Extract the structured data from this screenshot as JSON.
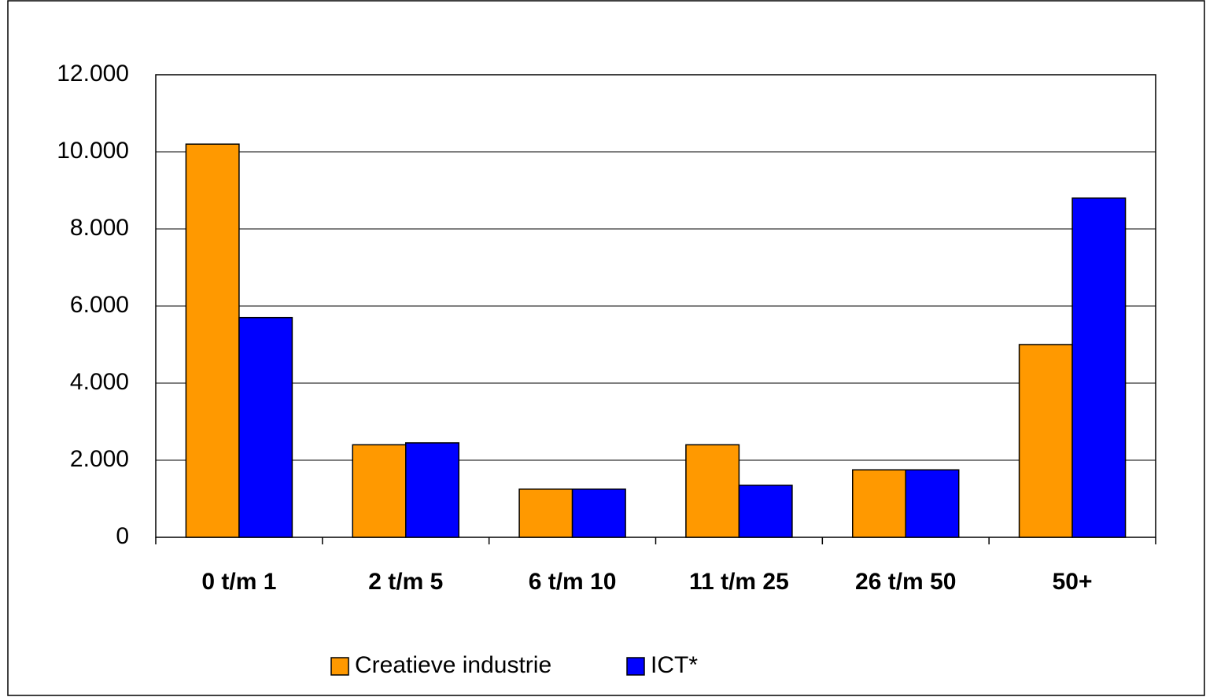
{
  "chart_data": {
    "type": "bar",
    "categories": [
      "0 t/m 1",
      "2 t/m 5",
      "6 t/m 10",
      "11 t/m 25",
      "26 t/m 50",
      "50+"
    ],
    "series": [
      {
        "name": "Creatieve industrie",
        "color": "#ff9900",
        "values": [
          10200,
          2400,
          1250,
          2400,
          1750,
          5000
        ]
      },
      {
        "name": "ICT*",
        "color": "#0000ff",
        "values": [
          5700,
          2450,
          1250,
          1350,
          1750,
          8800
        ]
      }
    ],
    "ylim": [
      0,
      12000
    ],
    "yticks": [
      0,
      {
        "value": 2000,
        "label": "2.000"
      },
      {
        "value": 4000,
        "label": "4.000"
      },
      {
        "value": 6000,
        "label": "6.000"
      },
      {
        "value": 8000,
        "label": "8.000"
      },
      {
        "value": 10000,
        "label": "10.000"
      },
      {
        "value": 12000,
        "label": "12.000"
      }
    ],
    "grid": true,
    "legend": "bottom"
  }
}
